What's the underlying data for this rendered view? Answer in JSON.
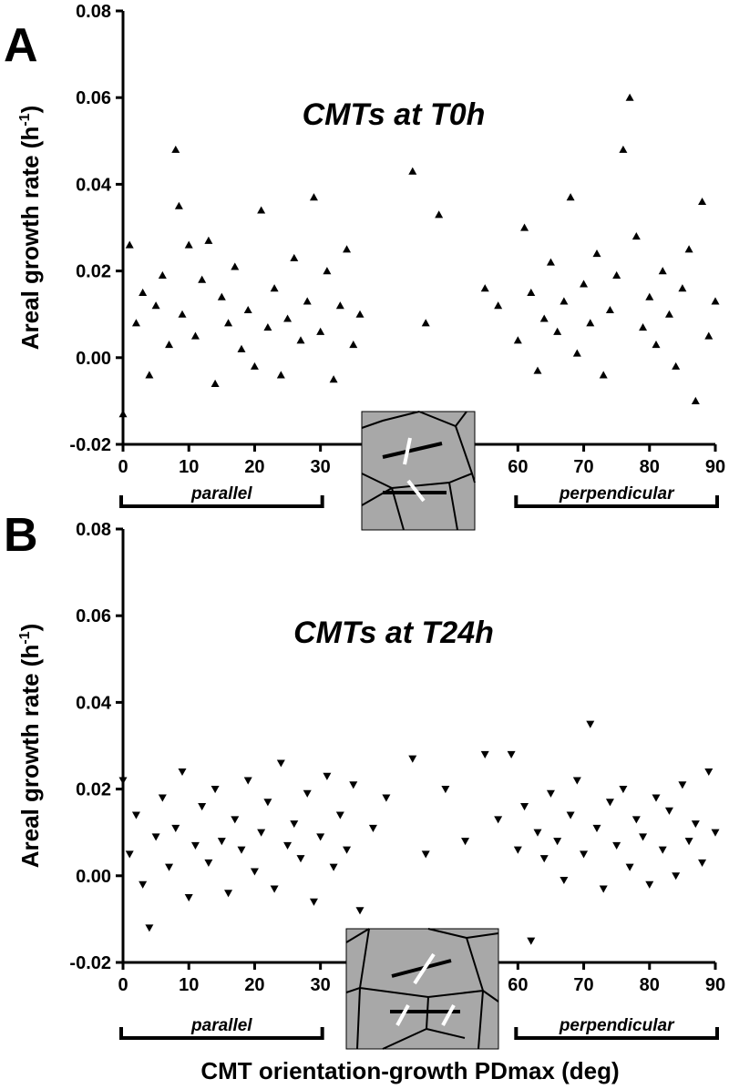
{
  "chart_data": [
    {
      "type": "scatter",
      "panel": "A",
      "title": "CMTs at T0h",
      "marker": "triangle-up",
      "color": "#000000",
      "y_label": "Areal growth rate (h",
      "y_label_sup": "-1",
      "y_label_end": ")",
      "xlim": [
        0,
        90
      ],
      "xticks": [
        0,
        10,
        20,
        30,
        60,
        70,
        80,
        90
      ],
      "ylim": [
        -0.02,
        0.08
      ],
      "yticks": [
        -0.02,
        {
          "value": 0,
          "label": "0.00"
        },
        0.02,
        0.04,
        0.06,
        0.08
      ],
      "bracket_left": "parallel",
      "bracket_right": "perpendicular",
      "x": [
        0,
        1,
        2,
        3,
        4,
        5,
        6,
        7,
        8,
        8.5,
        9,
        10,
        11,
        12,
        13,
        14,
        15,
        16,
        17,
        18,
        19,
        20,
        21,
        22,
        23,
        24,
        25,
        26,
        27,
        28,
        29,
        30,
        31,
        32,
        33,
        34,
        35,
        36,
        44,
        46,
        48,
        55,
        57,
        60,
        61,
        62,
        63,
        64,
        65,
        66,
        67,
        68,
        69,
        70,
        71,
        72,
        73,
        74,
        75,
        76,
        77,
        78,
        79,
        80,
        81,
        82,
        83,
        84,
        85,
        86,
        87,
        88,
        89,
        90
      ],
      "values": [
        -0.013,
        0.026,
        0.008,
        0.015,
        -0.004,
        0.012,
        0.019,
        0.003,
        0.048,
        0.035,
        0.01,
        0.026,
        0.005,
        0.018,
        0.027,
        -0.006,
        0.014,
        0.008,
        0.021,
        0.002,
        0.011,
        -0.002,
        0.034,
        0.007,
        0.016,
        -0.004,
        0.009,
        0.023,
        0.004,
        0.013,
        0.037,
        0.006,
        0.02,
        -0.005,
        0.012,
        0.025,
        0.003,
        0.01,
        0.043,
        0.008,
        0.033,
        0.016,
        0.012,
        0.004,
        0.03,
        0.015,
        -0.003,
        0.009,
        0.022,
        0.006,
        0.013,
        0.037,
        0.001,
        0.017,
        0.008,
        0.024,
        -0.004,
        0.011,
        0.019,
        0.048,
        0.06,
        0.028,
        0.007,
        0.014,
        0.003,
        0.02,
        0.01,
        -0.002,
        0.016,
        0.025,
        -0.01,
        0.036,
        0.005,
        0.013
      ]
    },
    {
      "type": "scatter",
      "panel": "B",
      "title": "CMTs at T24h",
      "marker": "triangle-down",
      "color": "#000000",
      "y_label": "Areal growth rate (h",
      "y_label_sup": "-1",
      "y_label_end": ")",
      "x_label": "CMT orientation-growth PDmax (deg)",
      "xlim": [
        0,
        90
      ],
      "xticks": [
        0,
        10,
        20,
        30,
        60,
        70,
        80,
        90
      ],
      "ylim": [
        -0.02,
        0.08
      ],
      "yticks": [
        -0.02,
        {
          "value": 0,
          "label": "0.00"
        },
        0.02,
        0.04,
        0.06,
        0.08
      ],
      "bracket_left": "parallel",
      "bracket_right": "perpendicular",
      "x": [
        0,
        1,
        2,
        3,
        4,
        5,
        6,
        7,
        8,
        9,
        10,
        11,
        12,
        13,
        14,
        15,
        16,
        17,
        18,
        19,
        20,
        21,
        22,
        23,
        24,
        25,
        26,
        27,
        28,
        29,
        30,
        31,
        32,
        33,
        34,
        35,
        36,
        38,
        40,
        44,
        46,
        49,
        52,
        55,
        57,
        59,
        60,
        61,
        62,
        63,
        64,
        65,
        66,
        67,
        68,
        69,
        70,
        71,
        72,
        73,
        74,
        75,
        76,
        77,
        78,
        79,
        80,
        81,
        82,
        83,
        84,
        85,
        86,
        87,
        88,
        89,
        90
      ],
      "values": [
        0.022,
        0.005,
        0.014,
        -0.002,
        -0.012,
        0.009,
        0.018,
        0.002,
        0.011,
        0.024,
        -0.005,
        0.007,
        0.016,
        0.003,
        0.02,
        0.008,
        -0.004,
        0.013,
        0.006,
        0.022,
        0.001,
        0.01,
        0.017,
        -0.003,
        0.026,
        0.007,
        0.012,
        0.004,
        0.019,
        -0.006,
        0.009,
        0.023,
        0.002,
        0.014,
        0.006,
        0.021,
        -0.008,
        0.011,
        0.018,
        0.027,
        0.005,
        0.02,
        0.008,
        0.028,
        0.013,
        0.028,
        0.006,
        0.016,
        -0.015,
        0.01,
        0.004,
        0.019,
        0.008,
        -0.001,
        0.014,
        0.022,
        0.005,
        0.035,
        0.011,
        -0.003,
        0.017,
        0.007,
        0.02,
        0.002,
        0.013,
        0.009,
        -0.002,
        0.018,
        0.006,
        0.015,
        0,
        0.021,
        0.008,
        0.012,
        0.003,
        0.024,
        0.01
      ]
    }
  ]
}
